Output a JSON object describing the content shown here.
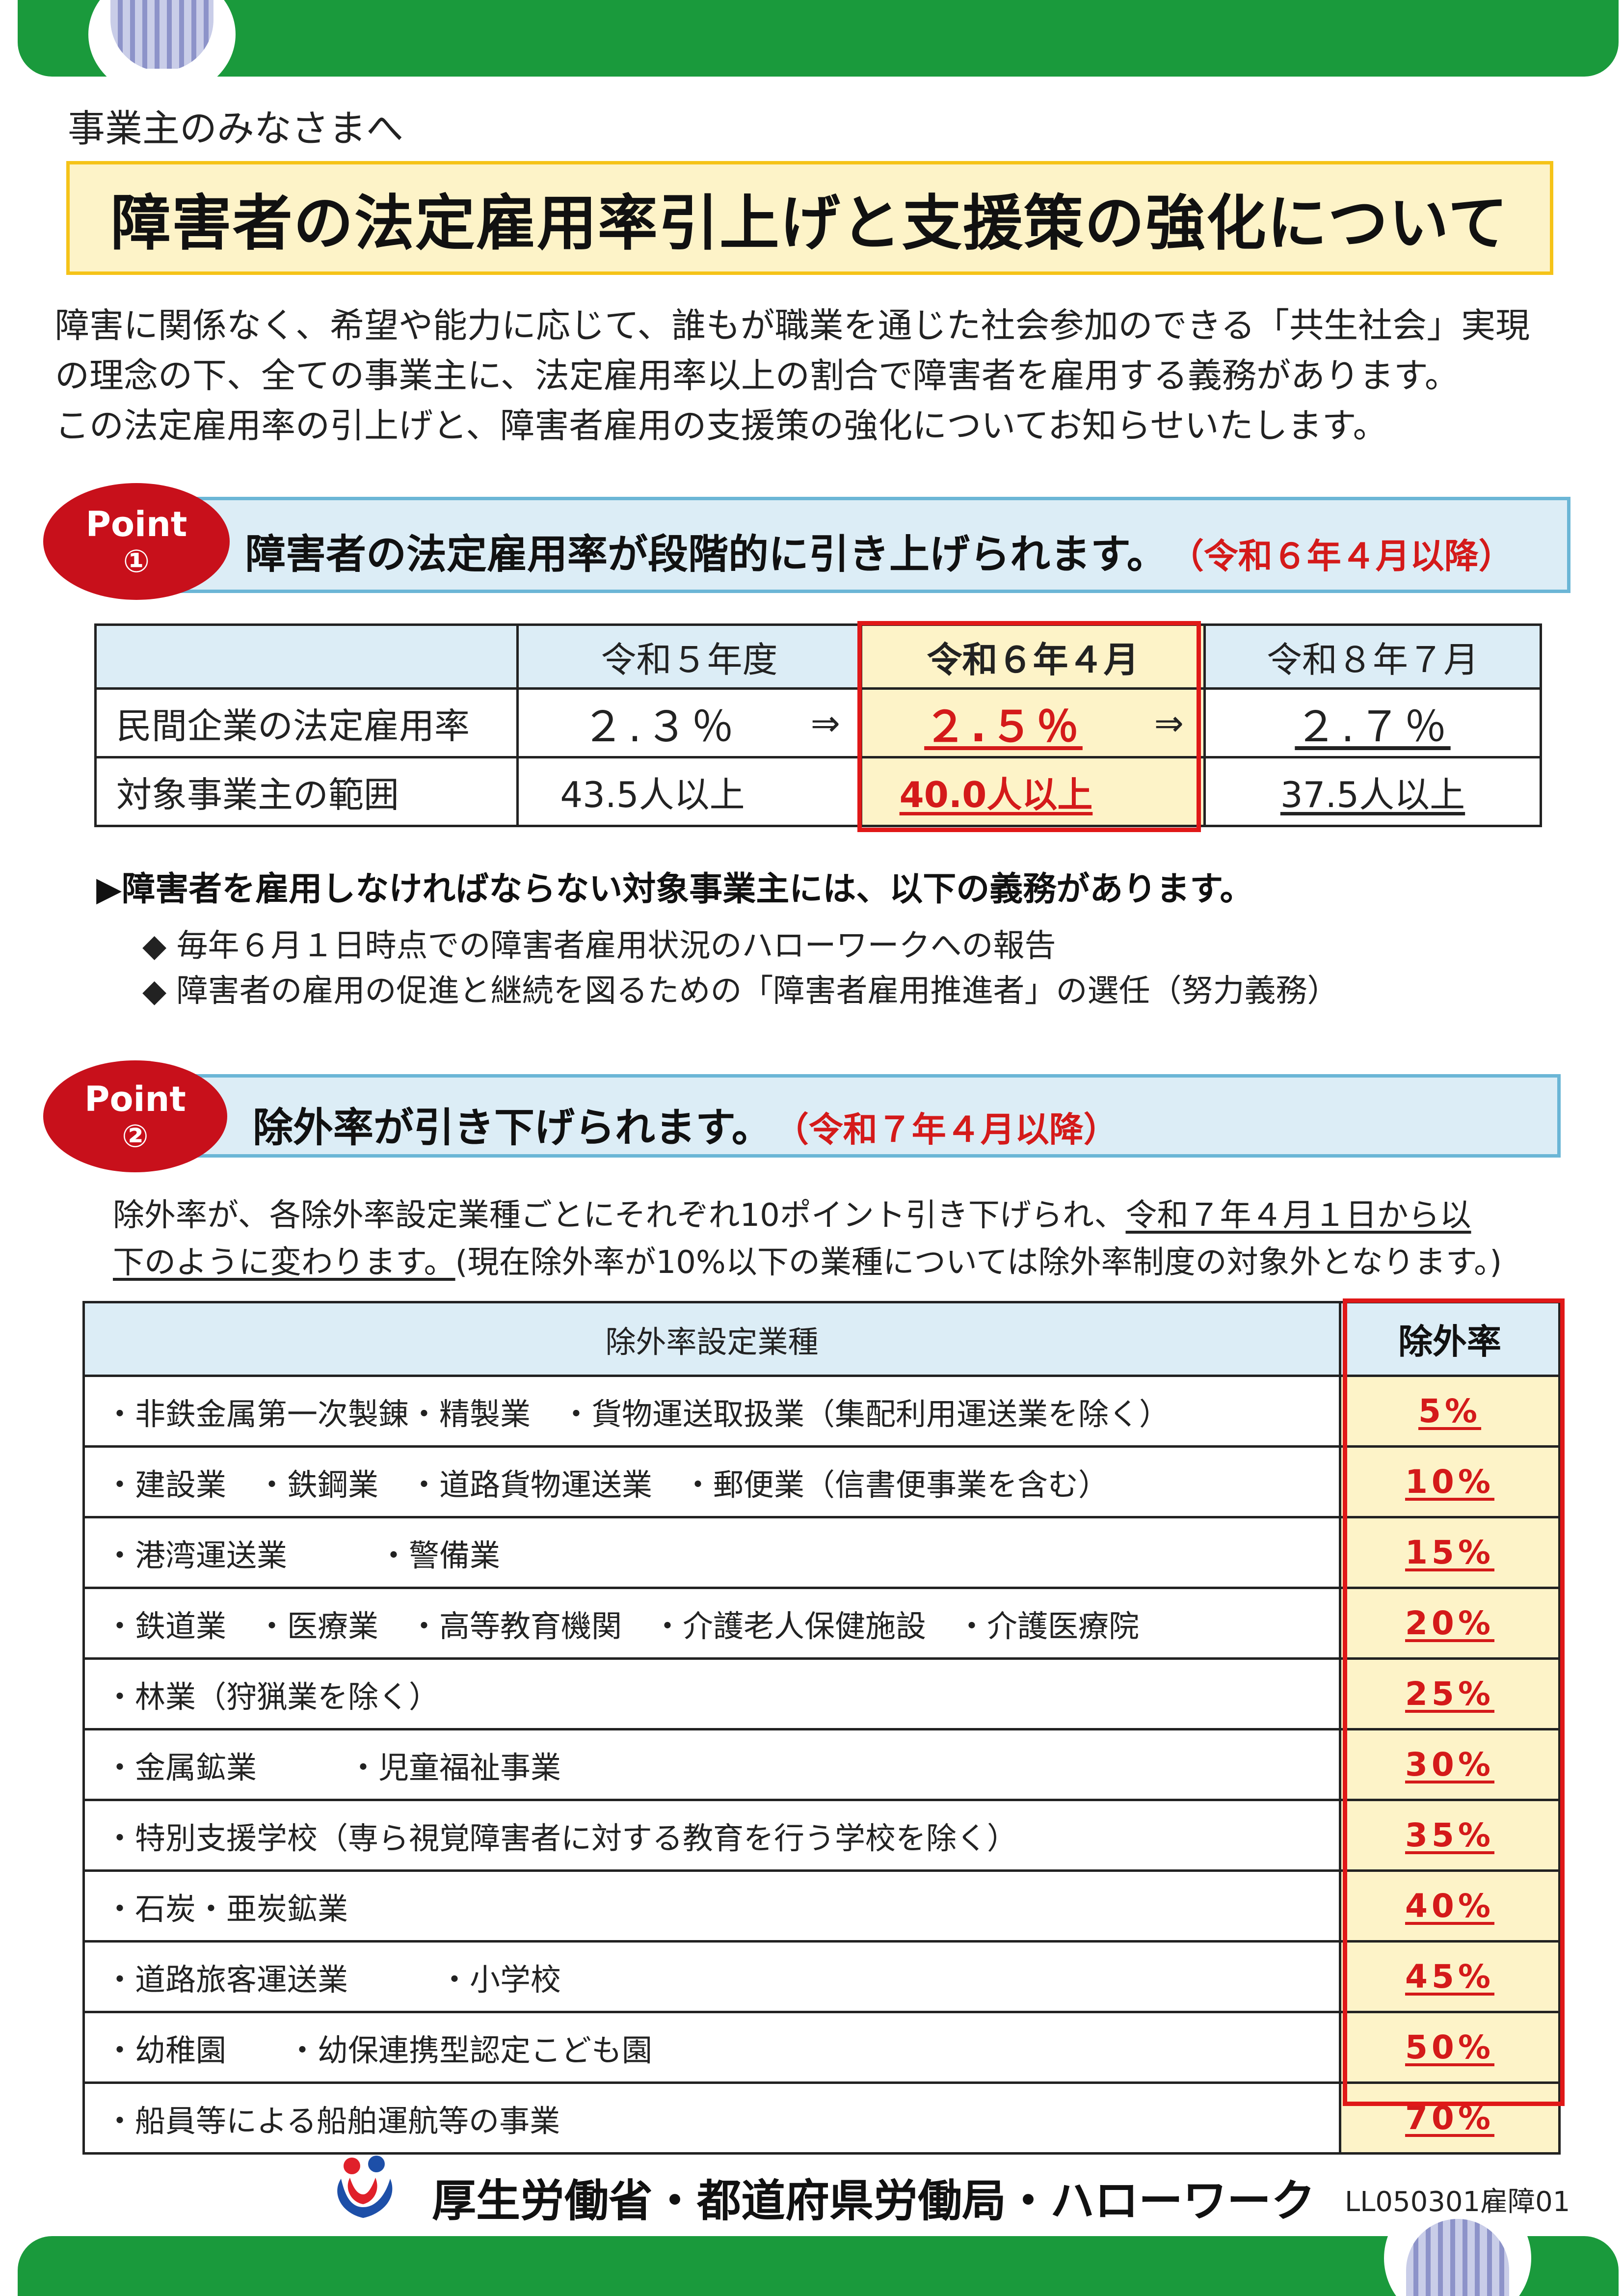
{
  "greeting": "事業主のみなさまへ",
  "title": "障害者の法定雇用率引上げと支援策の強化について",
  "intro": [
    "障害に関係なく、希望や能力に応じて、誰もが職業を通じた社会参加のできる「共生社会」実現",
    "の理念の下、全ての事業主に、法定雇用率以上の割合で障害者を雇用する義務があります。",
    "この法定雇用率の引上げと、障害者雇用の支援策の強化についてお知らせいたします。"
  ],
  "point1": {
    "badge_word": "Point",
    "badge_num": "①",
    "text": "障害者の法定雇用率が段階的に引き上げられます。",
    "date": "（令和６年４月以降）"
  },
  "rate_table": {
    "headers": [
      "",
      "令和５年度",
      "令和６年４月",
      "令和８年７月"
    ],
    "row1": {
      "label": "民間企業の法定雇用率",
      "v1": "２.３％",
      "v2": "２.５％",
      "v3": "２.７％"
    },
    "row2": {
      "label": "対象事業主の範囲",
      "v1": "43.5人以上",
      "v2": "40.0人以上",
      "v3": "37.5人以上"
    },
    "arrow": "⇒"
  },
  "obligations": {
    "heading": "▶障害者を雇用しなければならない対象事業主には、以下の義務があります。",
    "bullet": "◆",
    "items": [
      "毎年６月１日時点での障害者雇用状況のハローワークへの報告",
      "障害者の雇用の促進と継続を図るための「障害者雇用推進者」の選任（努力義務）"
    ]
  },
  "point2": {
    "badge_word": "Point",
    "badge_num": "②",
    "text": "除外率が引き下げられます。",
    "date": "（令和７年４月以降）"
  },
  "exclusion": {
    "desc_plain1": "除外率が、各除外率設定業種ごとにそれぞれ10ポイント引き下げられ、",
    "desc_ul1": "令和７年４月１日から以",
    "desc_ul2": "下のように変わります。",
    "desc_plain2": "(現在除外率が10%以下の業種については除外率制度の対象外となります。)",
    "header_industry": "除外率設定業種",
    "header_rate": "除外率",
    "rows": [
      {
        "industry": "・非鉄金属第一次製錬・精製業　・貨物運送取扱業（集配利用運送業を除く）",
        "rate": "5%"
      },
      {
        "industry": "・建設業　・鉄鋼業　・道路貨物運送業　・郵便業（信書便事業を含む）",
        "rate": "10%"
      },
      {
        "industry": "・港湾運送業　　　・警備業",
        "rate": "15%"
      },
      {
        "industry": "・鉄道業　・医療業　・高等教育機関　・介護老人保健施設　・介護医療院",
        "rate": "20%"
      },
      {
        "industry": "・林業（狩猟業を除く）",
        "rate": "25%"
      },
      {
        "industry": "・金属鉱業　　　・児童福祉事業",
        "rate": "30%"
      },
      {
        "industry": "・特別支援学校（専ら視覚障害者に対する教育を行う学校を除く）",
        "rate": "35%"
      },
      {
        "industry": "・石炭・亜炭鉱業",
        "rate": "40%"
      },
      {
        "industry": "・道路旅客運送業　　　・小学校",
        "rate": "45%"
      },
      {
        "industry": "・幼稚園　　・幼保連携型認定こども園",
        "rate": "50%"
      },
      {
        "industry": "・船員等による船舶運航等の事業",
        "rate": "70%"
      }
    ]
  },
  "footer": {
    "org": "厚生労働省・都道府県労働局・ハローワーク",
    "code": "LL050301雇障01",
    "logo_icon": "mhlw-logo-icon"
  },
  "colors": {
    "green": "#1a9a3c",
    "red": "#d41a1a",
    "yellow_fill": "#fdf3c8",
    "blue_fill": "#dcedf6"
  }
}
